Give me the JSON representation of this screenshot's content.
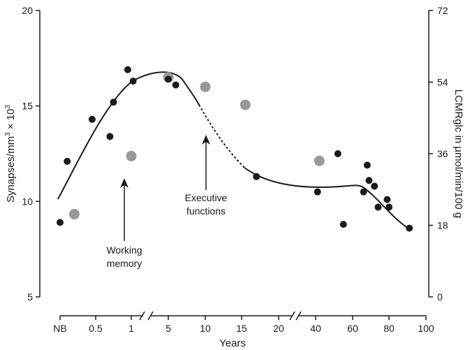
{
  "chart_data": {
    "type": "scatter",
    "xlabel": "Years",
    "ylabel_left": "Synapses/mm",
    "ylabel_left_sup": "3",
    "ylabel_left_mid": " × 10",
    "ylabel_left_sup2": "3",
    "ylabel_right": "LCMRglc in µmol/min/100 g",
    "x_ticks": [
      "NB",
      "0.5",
      "1",
      "5",
      "10",
      "15",
      "20",
      "40",
      "60",
      "80",
      "100"
    ],
    "y_left_ticks": [
      "20",
      "15",
      "10",
      "5"
    ],
    "y_right_ticks": [
      "72",
      "54",
      "36",
      "18",
      "0"
    ],
    "ylim_left": [
      5,
      20
    ],
    "ylim_right": [
      0,
      72
    ],
    "x_axis_breaks": [
      "between 1 and 5",
      "between 20 and 40"
    ],
    "colors": {
      "synapses": "#1a1a1a",
      "lcmrglc": "#999999",
      "axis": "#1a1a1a"
    },
    "series": [
      {
        "name": "Synapses",
        "marker": "black-dot",
        "points": [
          {
            "x": "NB",
            "y": 8.9
          },
          {
            "x": 0.1,
            "y": 12.1
          },
          {
            "x": 0.45,
            "y": 14.3
          },
          {
            "x": 0.7,
            "y": 13.4
          },
          {
            "x": 0.75,
            "y": 15.2
          },
          {
            "x": 0.95,
            "y": 16.9
          },
          {
            "x": 1.2,
            "y": 16.3
          },
          {
            "x": 5,
            "y": 16.4
          },
          {
            "x": 6,
            "y": 16.1
          },
          {
            "x": 17,
            "y": 11.3
          },
          {
            "x": 41,
            "y": 10.5
          },
          {
            "x": 52,
            "y": 12.5
          },
          {
            "x": 55,
            "y": 8.8
          },
          {
            "x": 66,
            "y": 10.5
          },
          {
            "x": 68,
            "y": 11.9
          },
          {
            "x": 69,
            "y": 11.1
          },
          {
            "x": 72,
            "y": 10.8
          },
          {
            "x": 74,
            "y": 9.7
          },
          {
            "x": 79,
            "y": 10.1
          },
          {
            "x": 80,
            "y": 9.7
          },
          {
            "x": 91,
            "y": 8.6
          }
        ]
      },
      {
        "name": "LCMRglc",
        "marker": "grey-dot",
        "points": [
          {
            "x": 0.2,
            "y": 20.8
          },
          {
            "x": 1,
            "y": 35.4
          },
          {
            "x": 5,
            "y": 55.2
          },
          {
            "x": 10,
            "y": 52.8
          },
          {
            "x": 15.5,
            "y": 48.3
          },
          {
            "x": 42,
            "y": 34.2
          }
        ]
      }
    ],
    "annotations": [
      {
        "lines": [
          "Working",
          "memory"
        ],
        "arrow_at_x": 0.85
      },
      {
        "lines": [
          "Executive",
          "functions"
        ],
        "arrow_at_x": 10
      }
    ]
  }
}
